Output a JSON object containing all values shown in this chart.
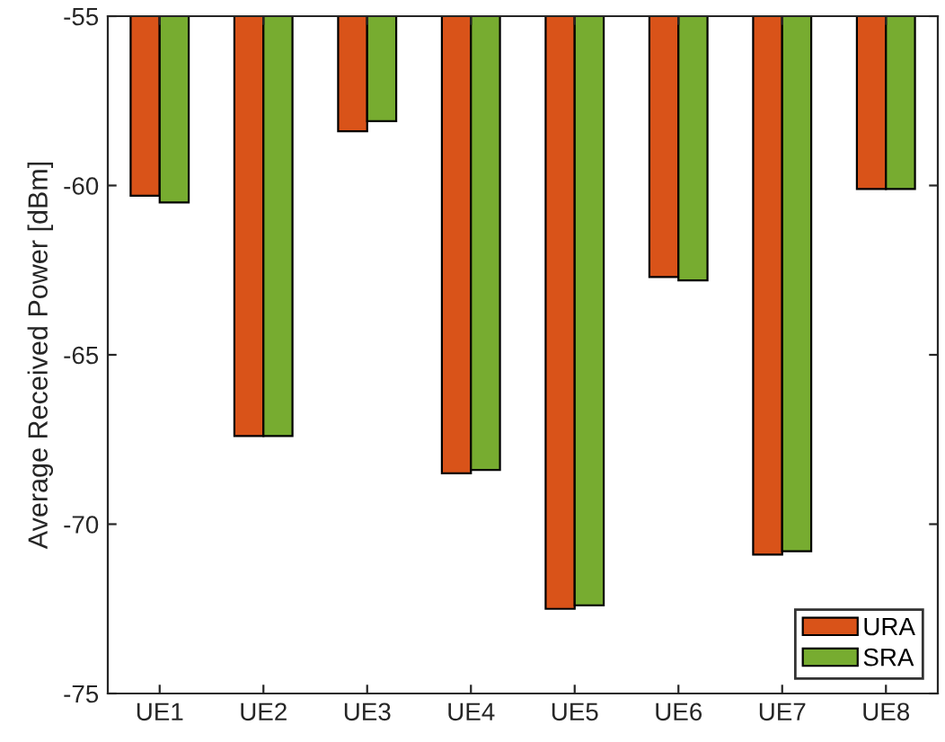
{
  "chart_data": {
    "type": "bar",
    "ylabel": "Average Received Power [dBm]",
    "categories": [
      "UE1",
      "UE2",
      "UE3",
      "UE4",
      "UE5",
      "UE6",
      "UE7",
      "UE8"
    ],
    "series": [
      {
        "name": "URA",
        "color": "#d95319",
        "values": [
          -60.3,
          -67.4,
          -58.4,
          -68.5,
          -72.5,
          -62.7,
          -70.9,
          -60.1
        ]
      },
      {
        "name": "SRA",
        "color": "#77ac30",
        "values": [
          -60.5,
          -67.4,
          -58.1,
          -68.4,
          -72.4,
          -62.8,
          -70.8,
          -60.1
        ]
      }
    ],
    "ylim": [
      -75,
      -55
    ],
    "yticks": [
      -75,
      -70,
      -65,
      -60,
      -55
    ],
    "grid": false,
    "legend": "bottom right"
  }
}
